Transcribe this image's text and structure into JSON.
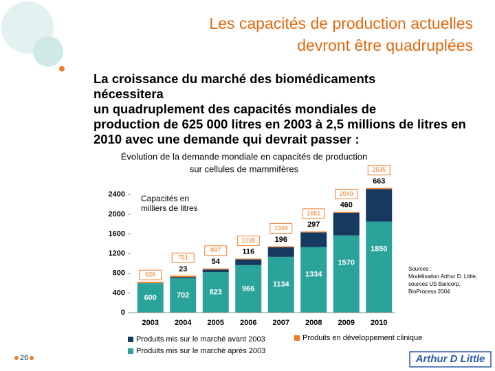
{
  "header": {
    "title_lines": [
      "Les capacités de production actuelles",
      "devront être quadruplées"
    ],
    "body_lines": [
      "La croissance du marché des biomédicaments",
      "nécessitera",
      "un quadruplement des capacités mondiales de",
      "production de 625 000 litres en 2003 à 2,5 millions de litres en",
      "2010 avec une demande qui devrait passer :"
    ]
  },
  "chart_data": {
    "type": "stacked_bar",
    "title_lines": [
      "Évolution de la demande mondiale en capacités de production",
      "sur cellules de mammifères"
    ],
    "y_annotation_lines": [
      "Capacités en",
      "milliers de litres"
    ],
    "categories": [
      "2003",
      "2004",
      "2005",
      "2006",
      "2007",
      "2008",
      "2009",
      "2010"
    ],
    "series": [
      {
        "name": "Produits mis sur le marché après 2003",
        "color": "#2aa39a",
        "values": [
          600,
          702,
          823,
          966,
          1134,
          1334,
          1570,
          1850
        ]
      },
      {
        "name": "Produits mis sur le marché avant 2003",
        "color": "#163a5f",
        "values": [
          null,
          23,
          54,
          116,
          196,
          297,
          460,
          663
        ]
      },
      {
        "name": "Produits en développement clinique",
        "color": "#f07c28",
        "values": [
          26,
          26,
          20,
          16,
          19,
          20,
          19,
          22
        ]
      }
    ],
    "totals": [
      626,
      751,
      897,
      1098,
      1349,
      1651,
      2049,
      2535
    ],
    "ylim": [
      0,
      2600
    ],
    "yticks": [
      0,
      400,
      800,
      1200,
      1600,
      2000,
      2400
    ],
    "sources_lines": [
      "Sources :",
      "Modélisation Arthur D. Little,",
      "sources US Bancorp,",
      "BioProcess 2004"
    ]
  },
  "footer": {
    "page": "26",
    "logo": "Arthur D Little"
  }
}
